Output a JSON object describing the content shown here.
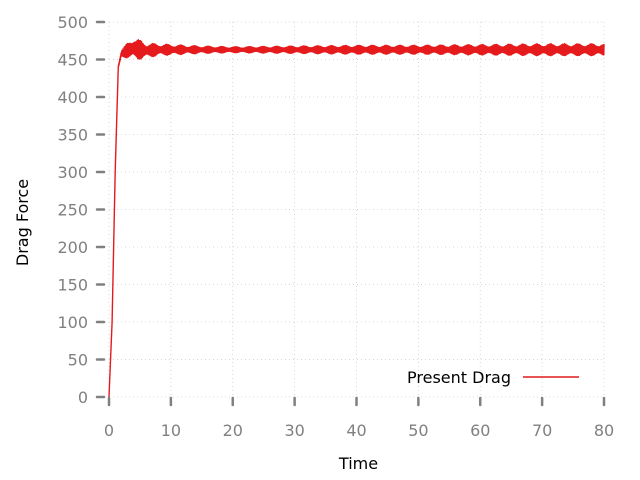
{
  "chart_data": {
    "type": "line",
    "xlabel": "Time",
    "ylabel": "Drag Force",
    "xlim": [
      0,
      80
    ],
    "ylim": [
      0,
      500
    ],
    "xticks": [
      0,
      10,
      20,
      30,
      40,
      50,
      60,
      70,
      80
    ],
    "yticks": [
      0,
      50,
      100,
      150,
      200,
      250,
      300,
      350,
      400,
      450,
      500
    ],
    "grid": true,
    "legend_position": "bottom-right",
    "series": [
      {
        "name": "Present Drag",
        "color": "#e41a1c",
        "x": [
          0,
          0.5,
          1.0,
          1.5,
          2.0,
          3.0,
          4.0,
          5.0,
          6.0,
          8.0,
          10.0,
          15.0,
          20.0,
          30.0,
          40.0,
          50.0,
          60.0,
          70.0,
          80.0
        ],
        "y": [
          0,
          100,
          300,
          440,
          458,
          462,
          465,
          463,
          462,
          463,
          463,
          463,
          463,
          463,
          463,
          463,
          463,
          463,
          463
        ],
        "oscillation_amplitude": [
          0,
          0,
          0,
          3,
          5,
          10,
          15,
          13,
          10,
          8,
          7,
          5,
          4,
          5,
          6,
          6,
          7,
          8,
          8
        ]
      }
    ]
  }
}
